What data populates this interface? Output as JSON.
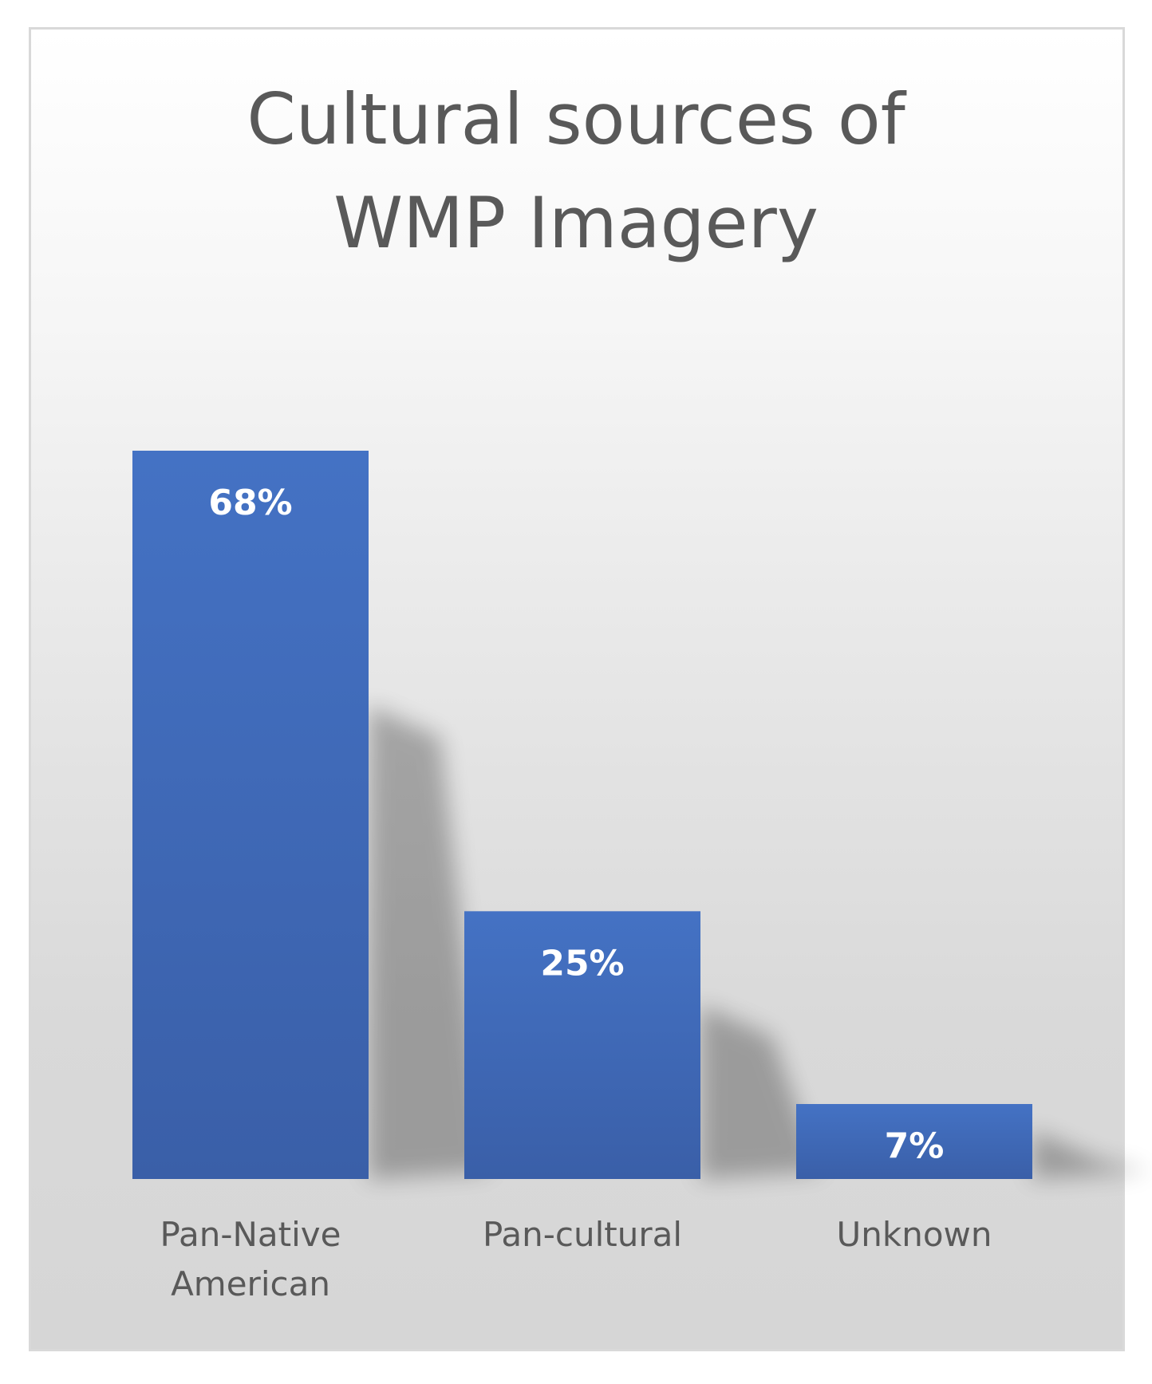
{
  "chart_data": {
    "type": "bar",
    "title_lines": [
      "Cultural sources of",
      "WMP Imagery"
    ],
    "categories": [
      [
        "Pan-Native",
        "American"
      ],
      [
        "Pan-cultural"
      ],
      [
        "Unknown"
      ]
    ],
    "values": [
      68,
      25,
      7
    ],
    "data_labels": [
      "68%",
      "25%",
      "7%"
    ],
    "ylim": [
      0,
      75
    ],
    "grid": false,
    "legend": "none",
    "bar_color": "#4472C4",
    "bar_color_dark": "#3A5FA8"
  }
}
